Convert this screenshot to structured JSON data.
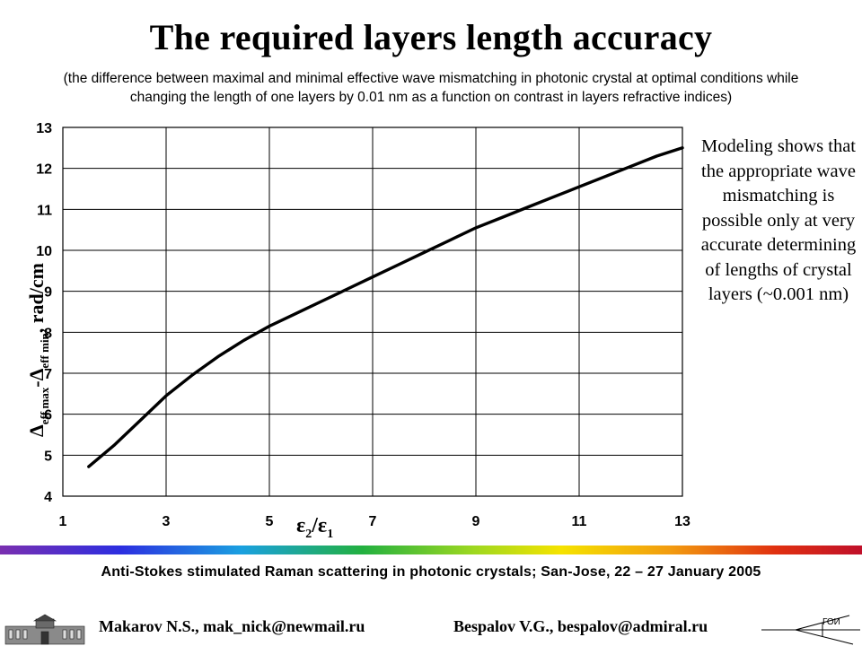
{
  "title": "The required layers length accuracy",
  "subtitle": "(the difference between maximal and minimal effective wave mismatching in photonic crystal at optimal conditions while changing the length of one layers by 0.01 nm as a function on contrast in layers refractive indices)",
  "side_note": "Modeling shows that the appropriate wave mismatching is possible only at very accurate determining of lengths of crystal layers (~0.001 nm)",
  "footer": {
    "conference": "Anti-Stokes stimulated Raman scattering in photonic crystals; San-Jose, 22 – 27 January  2005",
    "author1": "Makarov N.S., mak_nick@newmail.ru",
    "author2": "Bespalov V.G., bespalov@admiral.ru",
    "logo_text": "ГОИ"
  },
  "colors": {
    "curve": "#000000",
    "grid": "#000000",
    "rainbow_start": "#7a2fb0",
    "rainbow_end": "#c0102a"
  },
  "chart_data": {
    "type": "line",
    "title": "",
    "xlabel": "ε2/ε1",
    "ylabel": "Δeff max-Δeff min, rad/cm",
    "xlim": [
      1,
      13
    ],
    "ylim": [
      4,
      13
    ],
    "x_ticks": [
      1,
      3,
      5,
      7,
      9,
      11,
      13
    ],
    "y_ticks": [
      4,
      5,
      6,
      7,
      8,
      9,
      10,
      11,
      12,
      13
    ],
    "grid": true,
    "series": [
      {
        "x": [
          1.5,
          2,
          2.5,
          3,
          3.5,
          4,
          4.5,
          5,
          5.5,
          6,
          6.5,
          7,
          7.5,
          8,
          8.5,
          9,
          9.5,
          10,
          10.5,
          11,
          11.5,
          12,
          12.5,
          13
        ],
        "y": [
          4.72,
          5.25,
          5.85,
          6.45,
          6.95,
          7.4,
          7.8,
          8.15,
          8.45,
          8.75,
          9.05,
          9.35,
          9.65,
          9.95,
          10.25,
          10.55,
          10.8,
          11.05,
          11.3,
          11.55,
          11.8,
          12.05,
          12.3,
          12.5
        ]
      }
    ]
  }
}
